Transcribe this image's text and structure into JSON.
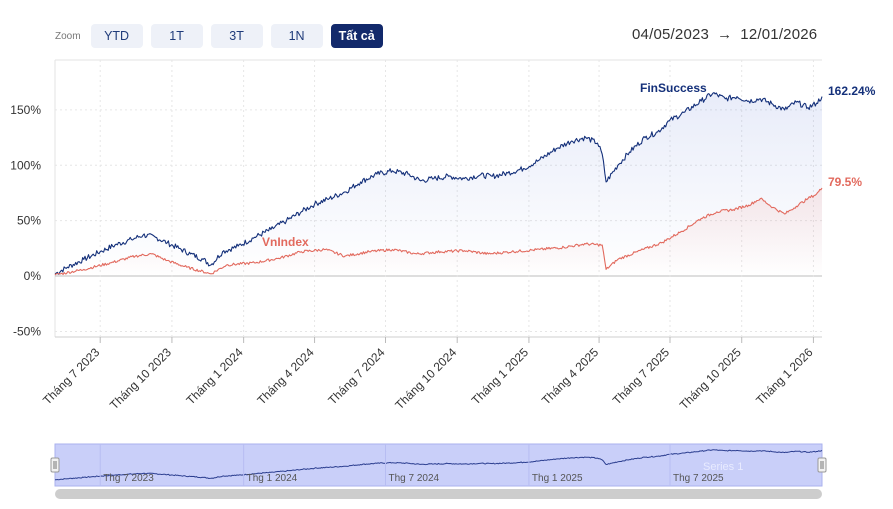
{
  "toolbar": {
    "zoom_label": "Zoom",
    "buttons": [
      "YTD",
      "1T",
      "3T",
      "1N",
      "Tất cả"
    ],
    "active_index": 4
  },
  "range": {
    "from": "04/05/2023",
    "arrow": "→",
    "to": "12/01/2026"
  },
  "navigator": {
    "labels": [
      "Thg 7 2023",
      "Thg 1 2024",
      "Thg 7 2024",
      "Thg 1 2025",
      "Thg 7 2025"
    ],
    "series_label": "Series 1"
  },
  "colors": {
    "finsuccess": "#14307a",
    "vnindex": "#e26a5e",
    "navigator_fill": "#c9cff9"
  },
  "chart_data": {
    "type": "line",
    "title": "",
    "ylabel": "",
    "ylim": [
      -55,
      195
    ],
    "yticks": [
      "-50%",
      "0%",
      "50%",
      "100%",
      "150%"
    ],
    "ytick_values": [
      -50,
      0,
      50,
      100,
      150
    ],
    "xticks": [
      "Tháng 7 2023",
      "Tháng 10 2023",
      "Tháng 1 2024",
      "Tháng 4 2024",
      "Tháng 7 2024",
      "Tháng 10 2024",
      "Tháng 1 2025",
      "Tháng 4 2025",
      "Tháng 7 2025",
      "Tháng 10 2025",
      "Tháng 1 2026"
    ],
    "xtick_dates": [
      "2023-07-01",
      "2023-10-01",
      "2024-01-01",
      "2024-04-01",
      "2024-07-01",
      "2024-10-01",
      "2025-01-01",
      "2025-04-01",
      "2025-07-01",
      "2025-10-01",
      "2026-01-01"
    ],
    "xlim": [
      "2023-05-04",
      "2026-01-12"
    ],
    "series": [
      {
        "name": "FinSuccess",
        "end_label": "162.24%",
        "points": [
          [
            "2023-05-04",
            2
          ],
          [
            "2023-05-20",
            8
          ],
          [
            "2023-06-10",
            15
          ],
          [
            "2023-07-01",
            22
          ],
          [
            "2023-07-20",
            28
          ],
          [
            "2023-08-10",
            33
          ],
          [
            "2023-08-25",
            37
          ],
          [
            "2023-09-10",
            35
          ],
          [
            "2023-09-25",
            30
          ],
          [
            "2023-10-10",
            25
          ],
          [
            "2023-10-25",
            20
          ],
          [
            "2023-11-10",
            15
          ],
          [
            "2023-11-20",
            10
          ],
          [
            "2023-12-05",
            22
          ],
          [
            "2023-12-25",
            27
          ],
          [
            "2024-01-15",
            35
          ],
          [
            "2024-02-05",
            42
          ],
          [
            "2024-02-25",
            50
          ],
          [
            "2024-03-15",
            58
          ],
          [
            "2024-04-01",
            65
          ],
          [
            "2024-04-20",
            70
          ],
          [
            "2024-05-10",
            76
          ],
          [
            "2024-05-30",
            85
          ],
          [
            "2024-06-20",
            92
          ],
          [
            "2024-07-10",
            95
          ],
          [
            "2024-07-30",
            92
          ],
          [
            "2024-08-15",
            86
          ],
          [
            "2024-09-01",
            88
          ],
          [
            "2024-09-20",
            90
          ],
          [
            "2024-10-10",
            88
          ],
          [
            "2024-10-30",
            91
          ],
          [
            "2024-11-15",
            90
          ],
          [
            "2024-12-05",
            93
          ],
          [
            "2024-12-25",
            97
          ],
          [
            "2025-01-15",
            105
          ],
          [
            "2025-02-05",
            115
          ],
          [
            "2025-02-25",
            122
          ],
          [
            "2025-03-15",
            125
          ],
          [
            "2025-03-30",
            120
          ],
          [
            "2025-04-05",
            110
          ],
          [
            "2025-04-10",
            85
          ],
          [
            "2025-04-25",
            100
          ],
          [
            "2025-05-10",
            112
          ],
          [
            "2025-05-30",
            125
          ],
          [
            "2025-06-15",
            130
          ],
          [
            "2025-06-30",
            140
          ],
          [
            "2025-07-20",
            148
          ],
          [
            "2025-08-10",
            158
          ],
          [
            "2025-08-25",
            165
          ],
          [
            "2025-09-10",
            160
          ],
          [
            "2025-09-25",
            162
          ],
          [
            "2025-10-10",
            158
          ],
          [
            "2025-10-25",
            160
          ],
          [
            "2025-11-10",
            155
          ],
          [
            "2025-11-25",
            150
          ],
          [
            "2025-12-10",
            157
          ],
          [
            "2025-12-25",
            152
          ],
          [
            "2026-01-05",
            156
          ],
          [
            "2026-01-12",
            162
          ]
        ]
      },
      {
        "name": "VnIndex",
        "end_label": "79.5%",
        "points": [
          [
            "2023-05-04",
            1
          ],
          [
            "2023-06-10",
            6
          ],
          [
            "2023-07-15",
            12
          ],
          [
            "2023-08-15",
            18
          ],
          [
            "2023-09-05",
            20
          ],
          [
            "2023-09-25",
            14
          ],
          [
            "2023-10-20",
            8
          ],
          [
            "2023-11-20",
            2
          ],
          [
            "2023-12-10",
            10
          ],
          [
            "2024-01-15",
            12
          ],
          [
            "2024-02-15",
            16
          ],
          [
            "2024-03-15",
            22
          ],
          [
            "2024-04-15",
            24
          ],
          [
            "2024-05-10",
            18
          ],
          [
            "2024-06-10",
            22
          ],
          [
            "2024-07-10",
            24
          ],
          [
            "2024-08-10",
            20
          ],
          [
            "2024-09-10",
            22
          ],
          [
            "2024-10-10",
            23
          ],
          [
            "2024-11-10",
            20
          ],
          [
            "2024-12-10",
            22
          ],
          [
            "2025-01-15",
            24
          ],
          [
            "2025-02-15",
            26
          ],
          [
            "2025-03-15",
            29
          ],
          [
            "2025-04-05",
            28
          ],
          [
            "2025-04-10",
            6
          ],
          [
            "2025-04-25",
            15
          ],
          [
            "2025-05-20",
            22
          ],
          [
            "2025-06-20",
            30
          ],
          [
            "2025-07-15",
            40
          ],
          [
            "2025-08-10",
            52
          ],
          [
            "2025-08-30",
            58
          ],
          [
            "2025-09-20",
            60
          ],
          [
            "2025-10-10",
            64
          ],
          [
            "2025-10-25",
            70
          ],
          [
            "2025-11-10",
            62
          ],
          [
            "2025-11-25",
            56
          ],
          [
            "2025-12-10",
            63
          ],
          [
            "2025-12-25",
            70
          ],
          [
            "2026-01-05",
            74
          ],
          [
            "2026-01-12",
            79.5
          ]
        ]
      }
    ],
    "annotations": [
      "FinSuccess",
      "VnIndex"
    ],
    "grid": true
  }
}
